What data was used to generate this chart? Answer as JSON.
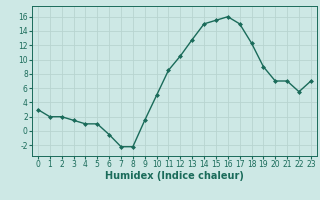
{
  "x": [
    0,
    1,
    2,
    3,
    4,
    5,
    6,
    7,
    8,
    9,
    10,
    11,
    12,
    13,
    14,
    15,
    16,
    17,
    18,
    19,
    20,
    21,
    22,
    23
  ],
  "y": [
    3,
    2,
    2,
    1.5,
    1,
    1,
    -0.5,
    -2.2,
    -2.2,
    1.5,
    5,
    8.5,
    10.5,
    12.8,
    15,
    15.5,
    16,
    15,
    12.3,
    9,
    7,
    7,
    5.5,
    7
  ],
  "line_color": "#1a6b5a",
  "marker": "D",
  "marker_size": 2.0,
  "bg_color": "#cde8e5",
  "grid_color": "#b8d4d0",
  "xlabel": "Humidex (Indice chaleur)",
  "xlim": [
    -0.5,
    23.5
  ],
  "ylim": [
    -3.5,
    17.5
  ],
  "yticks": [
    -2,
    0,
    2,
    4,
    6,
    8,
    10,
    12,
    14,
    16
  ],
  "xticks": [
    0,
    1,
    2,
    3,
    4,
    5,
    6,
    7,
    8,
    9,
    10,
    11,
    12,
    13,
    14,
    15,
    16,
    17,
    18,
    19,
    20,
    21,
    22,
    23
  ],
  "tick_label_fontsize": 5.5,
  "xlabel_fontsize": 7,
  "line_width": 1.0
}
